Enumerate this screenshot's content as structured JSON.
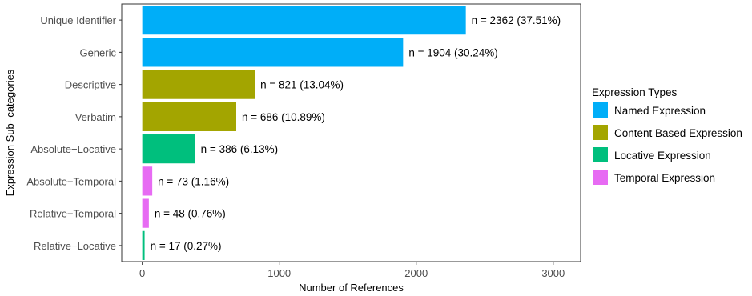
{
  "chart_data": {
    "type": "bar",
    "orientation": "horizontal",
    "categories": [
      "Unique Identifier",
      "Generic",
      "Descriptive",
      "Verbatim",
      "Absolute−Locative",
      "Absolute−Temporal",
      "Relative−Temporal",
      "Relative−Locative"
    ],
    "values": [
      2362,
      1904,
      821,
      686,
      386,
      73,
      48,
      17
    ],
    "data_labels": [
      "n = 2362 (37.51%)",
      "n = 1904 (30.24%)",
      "n = 821 (13.04%)",
      "n = 686 (10.89%)",
      "n = 386 (6.13%)",
      "n = 73 (1.16%)",
      "n = 48 (0.76%)",
      "n = 17 (0.27%)"
    ],
    "groups": [
      "Named Expression",
      "Named Expression",
      "Content Based Expression",
      "Content Based Expression",
      "Locative Expression",
      "Temporal Expression",
      "Temporal Expression",
      "Locative Expression"
    ],
    "xlabel": "Number of References",
    "ylabel": "Expression Sub−categories",
    "xlim": [
      -150,
      3200
    ],
    "xticks": [
      0,
      1000,
      2000,
      3000
    ],
    "xtick_labels": [
      "0",
      "1000",
      "2000",
      "3000"
    ],
    "grid": false,
    "legend": {
      "title": "Expression Types",
      "placement": "right",
      "entries": [
        {
          "name": "Named Expression",
          "color": "#00AEF8"
        },
        {
          "name": "Content Based Expression",
          "color": "#A3A500"
        },
        {
          "name": "Locative Expression",
          "color": "#00BF7D"
        },
        {
          "name": "Temporal Expression",
          "color": "#E76BF3"
        }
      ]
    }
  }
}
